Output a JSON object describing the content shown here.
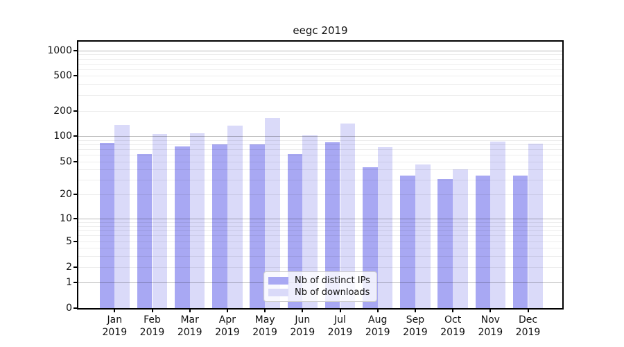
{
  "title": "eegc 2019",
  "chart_data": {
    "type": "bar",
    "title": "eegc 2019",
    "categories": [
      "Jan 2019",
      "Feb 2019",
      "Mar 2019",
      "Apr 2019",
      "May 2019",
      "Jun 2019",
      "Jul 2019",
      "Aug 2019",
      "Sep 2019",
      "Oct 2019",
      "Nov 2019",
      "Dec 2019"
    ],
    "series": [
      {
        "name": "Nb of distinct IPs",
        "color": "#a8a8f3",
        "values": [
          83,
          61,
          76,
          80,
          80,
          62,
          85,
          43,
          34,
          31,
          34,
          34
        ]
      },
      {
        "name": "Nb of downloads",
        "color": "#dadaf9",
        "values": [
          136,
          106,
          108,
          134,
          165,
          101,
          141,
          74,
          46,
          40,
          86,
          82
        ]
      }
    ],
    "xlabel": "",
    "ylabel": "",
    "y_ticks": [
      0,
      1,
      2,
      5,
      10,
      20,
      50,
      100,
      200,
      500,
      1000
    ],
    "y_scale": "log-like (symlog, linear below 1)",
    "ylim": [
      0,
      1200
    ],
    "grid": "horizontal, major at powers of 10 + light minors",
    "legend_position": "inside-bottom-center"
  },
  "legend": {
    "items": [
      {
        "label": "Nb of distinct IPs",
        "color": "#a8a8f3"
      },
      {
        "label": "Nb of downloads",
        "color": "#dadaf9"
      }
    ]
  },
  "colors": {
    "bar_distinct_ips": "#a8a8f3",
    "bar_downloads": "#dadaf9",
    "axis": "#000000",
    "background": "#ffffff"
  }
}
